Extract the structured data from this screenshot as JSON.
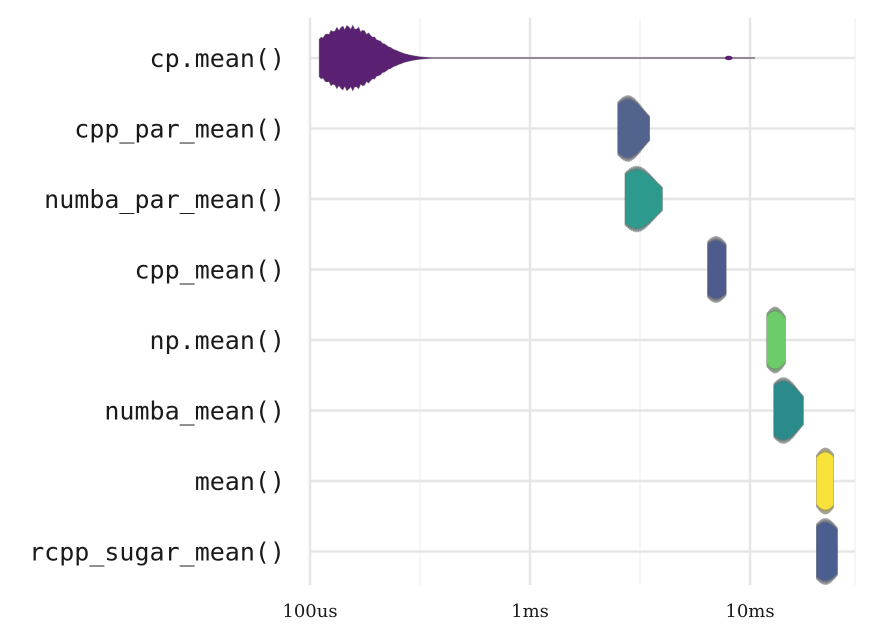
{
  "chart_data": {
    "type": "violin",
    "x_scale": "log10",
    "xlim": [
      0.1,
      30
    ],
    "x_ticks": [
      {
        "value": 0.1,
        "label": "100us"
      },
      {
        "value": 1,
        "label": "1ms"
      },
      {
        "value": 10,
        "label": "10ms"
      }
    ],
    "x_minor_ticks": [
      0.3162,
      3.162,
      31.62
    ],
    "grid": true,
    "legend": "none",
    "series": [
      {
        "name": "cp.mean()",
        "median": 0.15,
        "spread": 0.12,
        "min": 0.11,
        "max": 10.5,
        "color": "#5a2173",
        "bumps": [
          {
            "at": 0.145,
            "h": 1.0
          },
          {
            "at": 0.175,
            "h": 0.55
          },
          {
            "at": 0.125,
            "h": 0.35
          }
        ],
        "tail_blips": [
          {
            "at": 8.0,
            "h": 0.1
          }
        ]
      },
      {
        "name": "cpp_par_mean()",
        "median": 2.75,
        "spread": 0.07,
        "min": 2.5,
        "max": 3.5,
        "color": "#52638e",
        "bumps": [
          {
            "at": 2.75,
            "h": 1.0
          },
          {
            "at": 3.05,
            "h": 0.15
          }
        ]
      },
      {
        "name": "numba_par_mean()",
        "median": 3.0,
        "spread": 0.08,
        "min": 2.7,
        "max": 4.0,
        "color": "#2e9a8d",
        "bumps": [
          {
            "at": 3.0,
            "h": 1.0
          },
          {
            "at": 3.4,
            "h": 0.2
          }
        ]
      },
      {
        "name": "cpp_mean()",
        "median": 7.0,
        "spread": 0.07,
        "min": 6.4,
        "max": 7.8,
        "color": "#4d5c8c",
        "bumps": [
          {
            "at": 7.0,
            "h": 1.0
          }
        ]
      },
      {
        "name": "np.mean()",
        "median": 13.0,
        "spread": 0.06,
        "min": 11.9,
        "max": 14.5,
        "color": "#6ccc6a",
        "bumps": [
          {
            "at": 13.0,
            "h": 1.0
          }
        ]
      },
      {
        "name": "numba_mean()",
        "median": 14.0,
        "spread": 0.07,
        "min": 12.8,
        "max": 17.5,
        "color": "#2a8b8a",
        "bumps": [
          {
            "at": 14.0,
            "h": 1.0
          },
          {
            "at": 15.8,
            "h": 0.15
          }
        ]
      },
      {
        "name": "mean()",
        "median": 22.0,
        "spread": 0.06,
        "min": 20.0,
        "max": 24.0,
        "color": "#f9e23a",
        "bumps": [
          {
            "at": 22.0,
            "h": 1.0
          }
        ]
      },
      {
        "name": "rcpp_sugar_mean()",
        "median": 22.0,
        "spread": 0.07,
        "min": 20.0,
        "max": 25.0,
        "color": "#4a5f8f",
        "bumps": [
          {
            "at": 22.0,
            "h": 1.0
          }
        ]
      }
    ]
  }
}
